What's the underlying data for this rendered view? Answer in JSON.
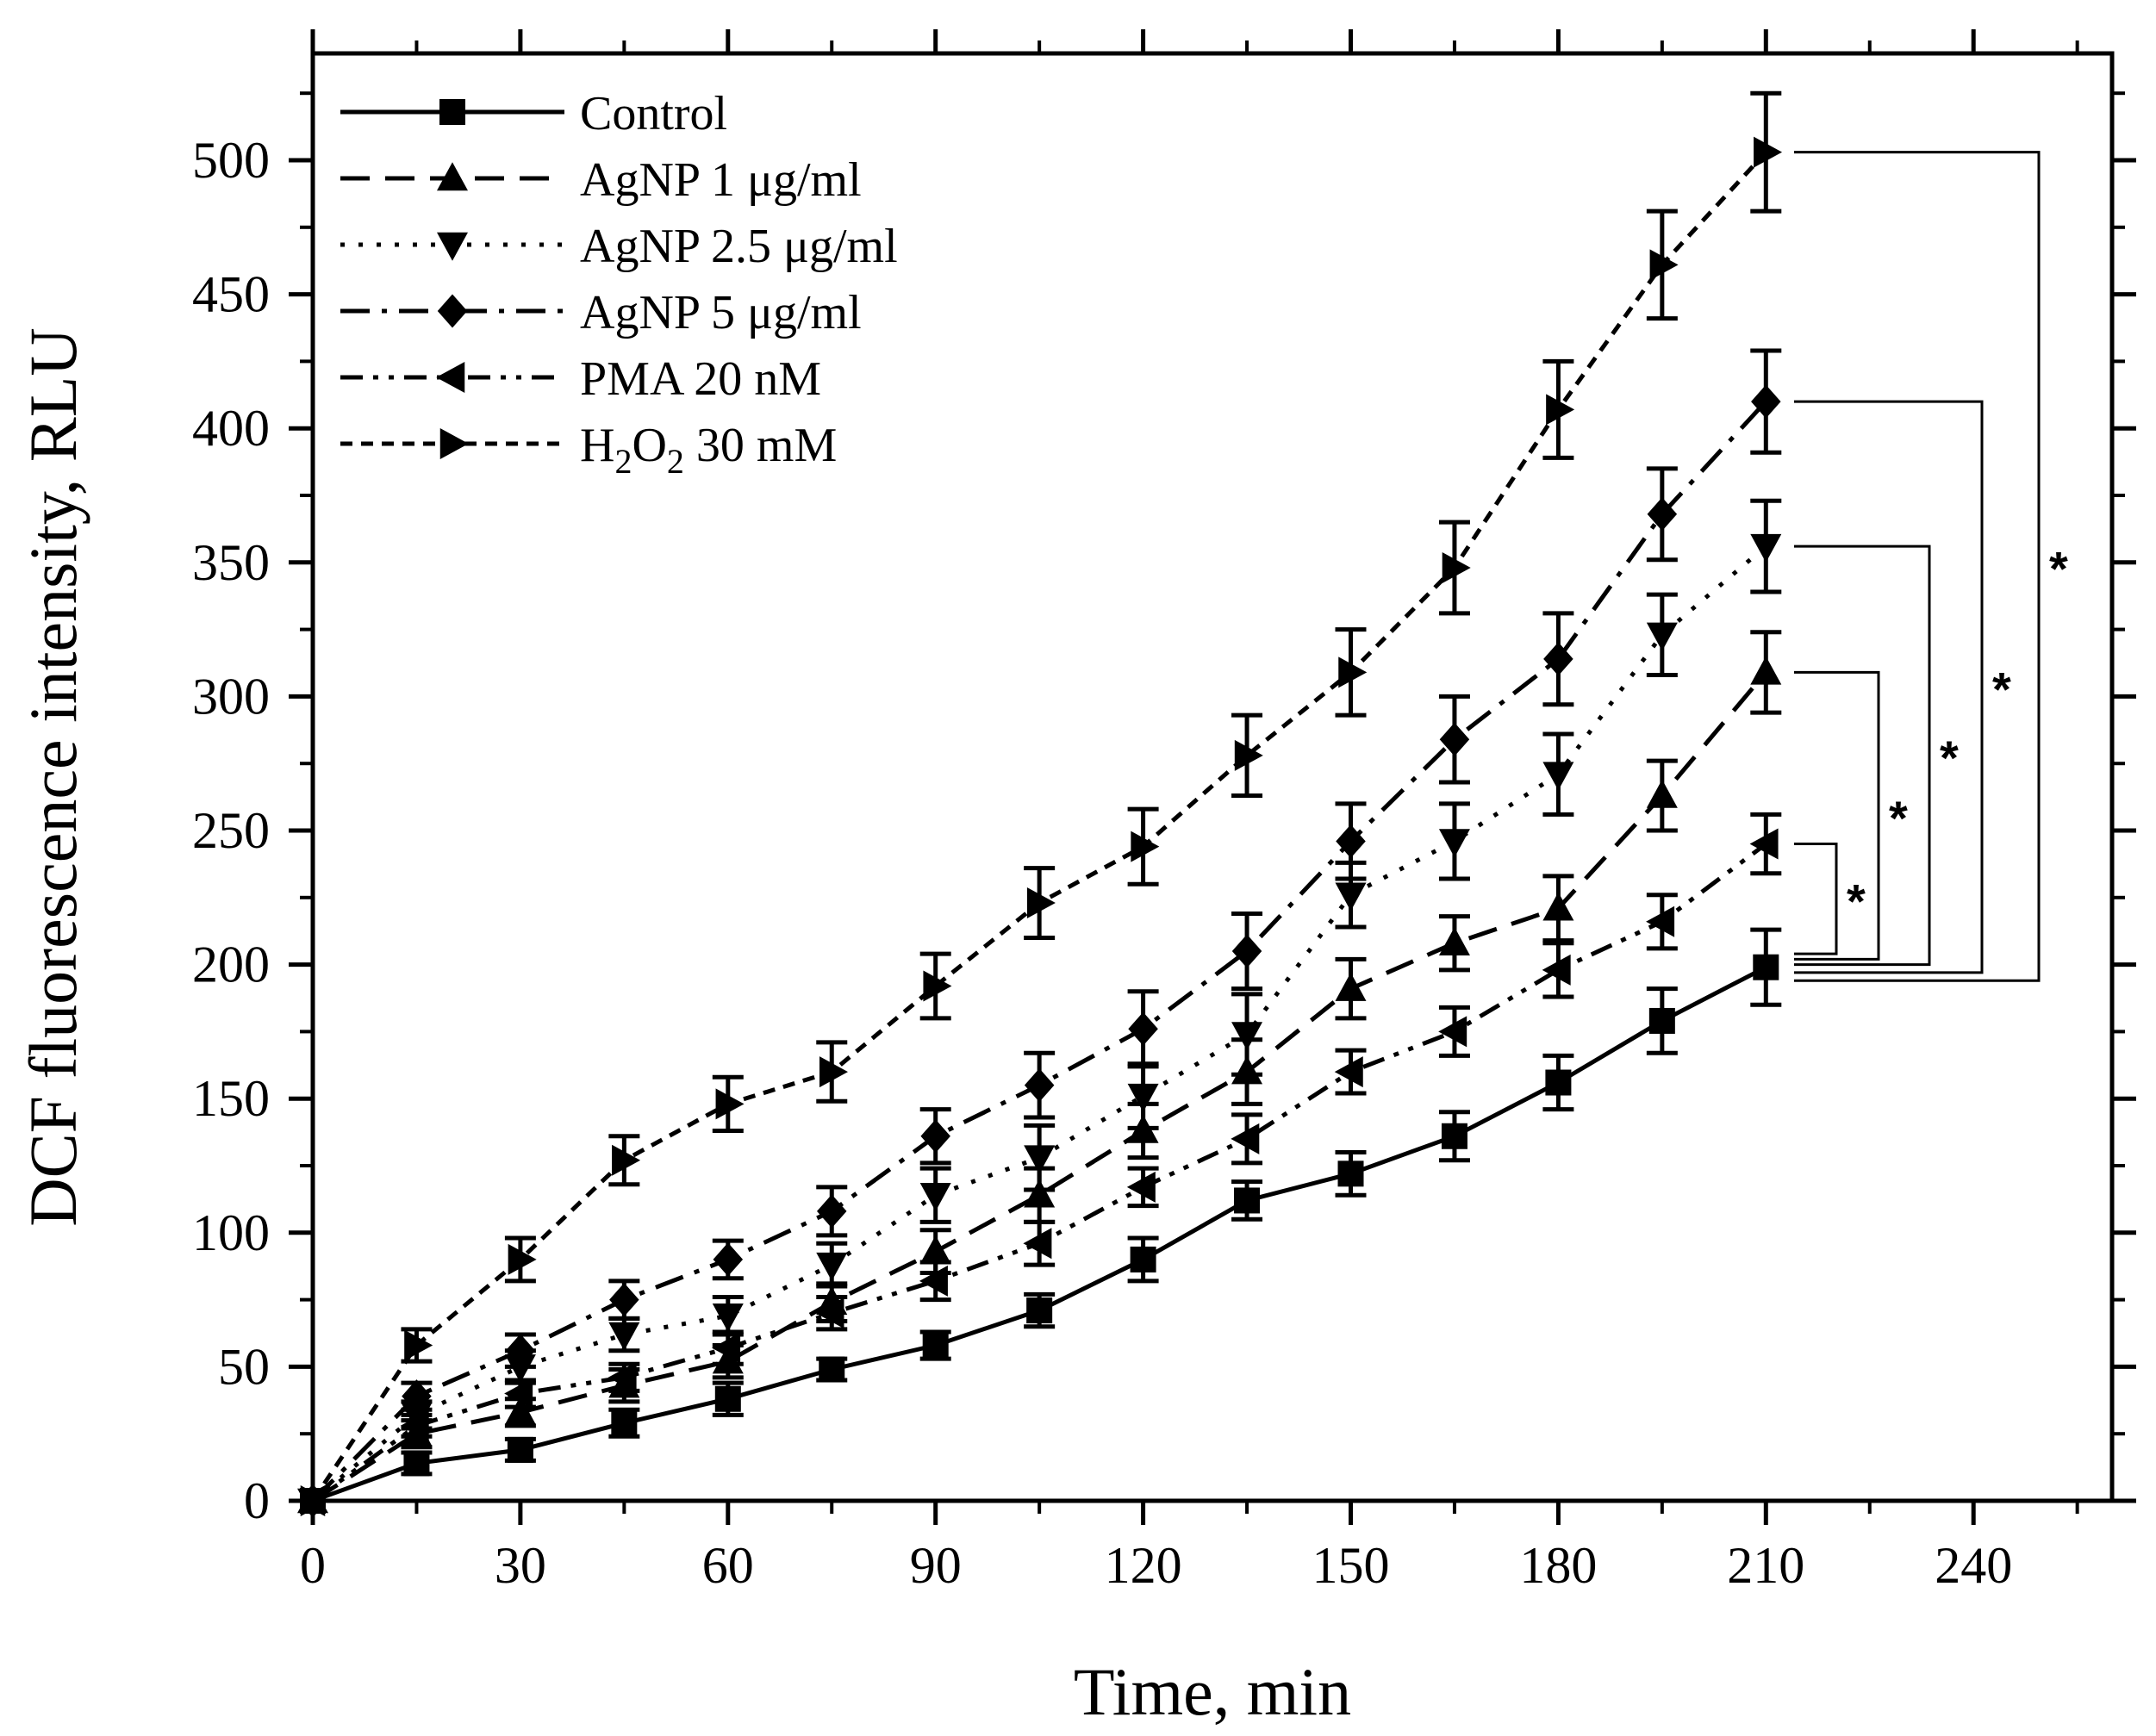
{
  "chart_data": {
    "type": "line",
    "title": "",
    "xlabel": "Time, min",
    "ylabel": "DCF fluorescence intensity, RLU",
    "xlim": [
      0,
      260
    ],
    "ylim": [
      0,
      540
    ],
    "xticks": [
      0,
      30,
      60,
      90,
      120,
      150,
      180,
      210,
      240
    ],
    "xtick_labels": [
      "0",
      "30",
      "60",
      "90",
      "120",
      "150",
      "180",
      "210",
      "240"
    ],
    "yticks": [
      0,
      50,
      100,
      150,
      200,
      250,
      300,
      350,
      400,
      450,
      500
    ],
    "ytick_labels": [
      "0",
      "50",
      "100",
      "150",
      "200",
      "250",
      "300",
      "350",
      "400",
      "450",
      "500"
    ],
    "legend_position": "top-left",
    "x": [
      0,
      15,
      30,
      45,
      60,
      75,
      90,
      105,
      120,
      135,
      150,
      165,
      180,
      195,
      210
    ],
    "series": [
      {
        "name": "Control",
        "legend_label": "Control",
        "marker": "square",
        "dash": "solid",
        "values": [
          0,
          14,
          19,
          29,
          38,
          49,
          58,
          71,
          90,
          112,
          122,
          136,
          156,
          179,
          199
        ],
        "errors": [
          0,
          4,
          4,
          5,
          6,
          4,
          5,
          6,
          8,
          7,
          8,
          9,
          10,
          12,
          14
        ]
      },
      {
        "name": "AgNP 1 μg/ml",
        "legend_label": "AgNP 1 μg/ml",
        "marker": "triangle-up",
        "dash": "dash",
        "values": [
          0,
          25,
          33,
          43,
          52,
          74,
          93,
          114,
          138,
          160,
          191,
          208,
          221,
          263,
          309
        ],
        "errors": [
          0,
          5,
          5,
          6,
          6,
          7,
          8,
          10,
          10,
          12,
          11,
          10,
          12,
          13,
          15
        ]
      },
      {
        "name": "AgNP 2.5 μg/ml",
        "legend_label": "AgNP 2.5 μg/ml",
        "marker": "triangle-down",
        "dash": "dot",
        "values": [
          0,
          32,
          50,
          62,
          69,
          88,
          114,
          128,
          151,
          174,
          226,
          246,
          271,
          323,
          356
        ],
        "errors": [
          0,
          5,
          6,
          6,
          7,
          8,
          10,
          12,
          12,
          15,
          12,
          14,
          15,
          15,
          17
        ]
      },
      {
        "name": "AgNP 5 μg/ml",
        "legend_label": "AgNP 5 μg/ml",
        "marker": "diamond",
        "dash": "dashdot",
        "values": [
          0,
          39,
          56,
          75,
          90,
          108,
          136,
          155,
          176,
          205,
          246,
          284,
          314,
          368,
          410
        ],
        "errors": [
          0,
          5,
          6,
          7,
          7,
          9,
          10,
          12,
          14,
          14,
          14,
          16,
          17,
          17,
          19
        ]
      },
      {
        "name": "PMA 20 nM",
        "legend_label": "PMA 20 nM",
        "marker": "triangle-left",
        "dash": "dashdotdot",
        "values": [
          0,
          28,
          40,
          46,
          57,
          70,
          82,
          96,
          117,
          135,
          160,
          175,
          198,
          216,
          245
        ],
        "errors": [
          0,
          4,
          5,
          5,
          6,
          6,
          7,
          8,
          7,
          9,
          8,
          9,
          10,
          10,
          11
        ]
      },
      {
        "name": "H2O2 30 mM",
        "legend_label": "H",
        "legend_sub1": "2",
        "legend_mid": "O",
        "legend_sub2": "2",
        "legend_tail": " 30 mM",
        "marker": "triangle-right",
        "dash": "shortdash",
        "values": [
          0,
          58,
          90,
          127,
          148,
          160,
          192,
          223,
          244,
          278,
          309,
          348,
          407,
          461,
          503
        ],
        "errors": [
          0,
          6,
          8,
          9,
          10,
          11,
          12,
          13,
          14,
          15,
          16,
          17,
          18,
          20,
          22
        ]
      }
    ],
    "significance_brackets": [
      {
        "compare": "PMA 20 nM",
        "top": 245,
        "bottom": 204,
        "label": "*"
      },
      {
        "compare": "AgNP 1 μg/ml",
        "top": 309,
        "bottom": 202,
        "label": "*"
      },
      {
        "compare": "AgNP 2.5 μg/ml",
        "top": 356,
        "bottom": 200,
        "label": "*"
      },
      {
        "compare": "AgNP 5 μg/ml",
        "top": 410,
        "bottom": 197,
        "label": "*"
      },
      {
        "compare": "H2O2 30 mM",
        "top": 503,
        "bottom": 194,
        "label": "*"
      }
    ]
  }
}
